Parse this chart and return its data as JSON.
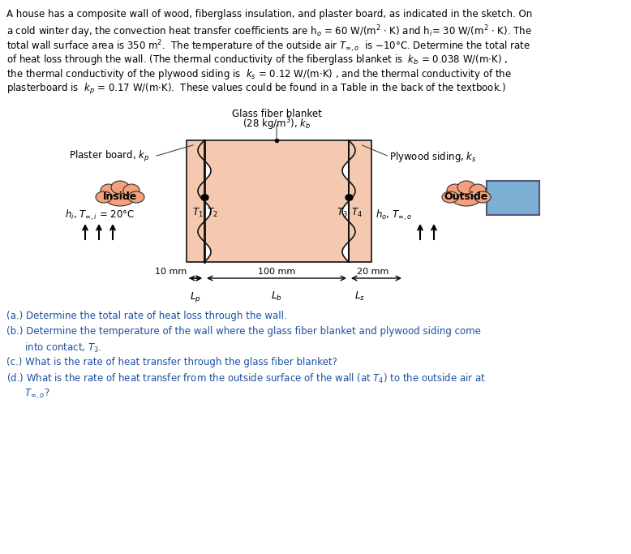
{
  "title_text": "A house has a composite wall of wood, fiberglass insulation, and plaster board, as indicated in the sketch. On\na cold winter day, the convection heat transfer coefficients are hₒ = 60 W/(m² · K) and hᵢ= 30 W/(m² · K). The\ntotal wall surface area is 350 m².  The temperature of the outside air T∞,ₒ  is –10°C. Determine the total rate\nof heat loss through the wall. (The thermal conductivity of the fiberglass blanket is  kₕ = 0.038 W/(m·K) ,\nthe thermal conductivity of the plywood siding is  kₛ = 0.12 W/(m·K) , and the thermal conductivity of the\nplasterboard is  kₚ = 0.17 W/(m·K).  These values could be found in a Table in the back of the textbook.)",
  "bg_color": "#ffffff",
  "diagram": {
    "plaster_color": "#f5c8b0",
    "blanket_color": "#f5c8b0",
    "plywood_color": "#f5c8b0",
    "wall_border_color": "#1a1a1a",
    "inside_cloud_color": "#f5a07a",
    "outside_cloud_color": "#f5a07a",
    "outside_box_color": "#7bafd4",
    "arrow_color": "#1a1a1a",
    "label_color": "#1a1a1a",
    "dim_arrow_color": "#555555"
  },
  "questions": [
    "(a.) Determine the total rate of heat loss through the wall.",
    "(b.) Determine the temperature of the wall where the glass fiber blanket and plywood siding come\n      into contact, T3.",
    "(c.) What is the rate of heat transfer through the glass fiber blanket?",
    "(d.) What is the rate of heat transfer from the outside surface of the wall (at T4) to the outside air at\n      T∞,o?"
  ]
}
